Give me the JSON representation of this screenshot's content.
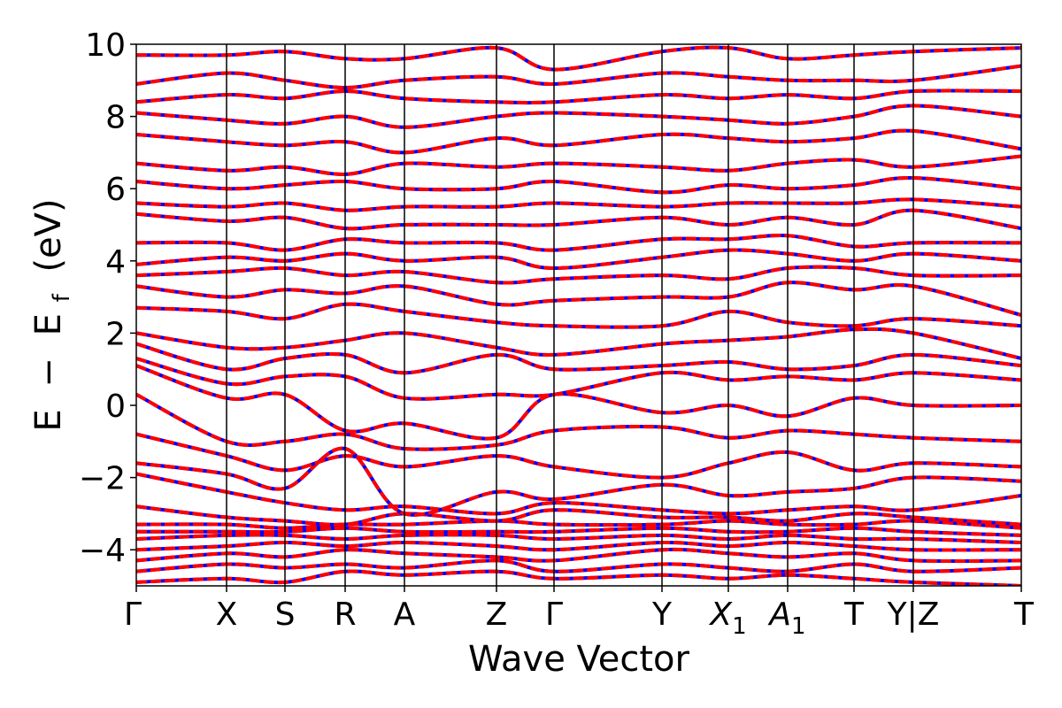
{
  "chart_data": {
    "type": "line",
    "title": "",
    "xlabel": "Wave Vector",
    "ylabel_parts": {
      "e": "E",
      "minus": "−",
      "ef": "E",
      "sub": "f",
      "unit": "(eV)"
    },
    "ylim": [
      -5,
      10
    ],
    "xlim": [
      0,
      1
    ],
    "grid": false,
    "legend": "none",
    "yticks": [
      {
        "value": 10,
        "label": "10"
      },
      {
        "value": 8,
        "label": "8"
      },
      {
        "value": 6,
        "label": "6"
      },
      {
        "value": 4,
        "label": "4"
      },
      {
        "value": 2,
        "label": "2"
      },
      {
        "value": 0,
        "label": "0"
      },
      {
        "value": -2,
        "label": "−2"
      },
      {
        "value": -4,
        "label": "−4"
      }
    ],
    "kpoints": [
      {
        "x": 0.0,
        "label": "Γ",
        "sub": ""
      },
      {
        "x": 0.102,
        "label": "X",
        "sub": ""
      },
      {
        "x": 0.168,
        "label": "S",
        "sub": ""
      },
      {
        "x": 0.236,
        "label": "R",
        "sub": ""
      },
      {
        "x": 0.303,
        "label": "A",
        "sub": ""
      },
      {
        "x": 0.407,
        "label": "Z",
        "sub": ""
      },
      {
        "x": 0.472,
        "label": "Γ",
        "sub": ""
      },
      {
        "x": 0.594,
        "label": "Y",
        "sub": ""
      },
      {
        "x": 0.669,
        "label": "X",
        "sub": "1",
        "italic": true
      },
      {
        "x": 0.736,
        "label": "A",
        "sub": "1",
        "italic": true
      },
      {
        "x": 0.811,
        "label": "T",
        "sub": ""
      },
      {
        "x": 0.878,
        "label": "Y|Z",
        "sub": ""
      },
      {
        "x": 1.0,
        "label": "T",
        "sub": ""
      }
    ],
    "band_styles": {
      "series_a": {
        "color": "#ff0000"
      },
      "series_b": {
        "color": "#0000ff",
        "dashed": true
      }
    },
    "bands": [
      [
        -4.9,
        -4.8,
        -4.9,
        -4.6,
        -4.7,
        -4.6,
        -4.8,
        -4.7,
        -4.8,
        -4.7,
        -4.8,
        -4.9,
        -5.0
      ],
      [
        -4.6,
        -4.4,
        -4.5,
        -4.4,
        -4.5,
        -4.3,
        -4.6,
        -4.4,
        -4.5,
        -4.6,
        -4.4,
        -4.6,
        -4.5
      ],
      [
        -4.3,
        -4.1,
        -4.2,
        -4.0,
        -4.1,
        -4.2,
        -4.3,
        -4.0,
        -4.1,
        -4.2,
        -4.1,
        -4.3,
        -4.3
      ],
      [
        -4.0,
        -3.9,
        -3.8,
        -3.9,
        -3.8,
        -3.9,
        -4.0,
        -3.8,
        -3.9,
        -3.8,
        -3.9,
        -4.0,
        -4.0
      ],
      [
        -3.7,
        -3.6,
        -3.6,
        -3.7,
        -3.6,
        -3.6,
        -3.7,
        -3.6,
        -3.7,
        -3.6,
        -3.7,
        -3.7,
        -3.8
      ],
      [
        -3.5,
        -3.5,
        -3.5,
        -3.4,
        -3.5,
        -3.5,
        -3.5,
        -3.4,
        -3.5,
        -3.5,
        -3.4,
        -3.5,
        -3.6
      ],
      [
        -3.3,
        -3.3,
        -3.4,
        -3.3,
        -3.3,
        -3.2,
        -3.3,
        -3.3,
        -3.2,
        -3.3,
        -3.3,
        -3.2,
        -3.4
      ],
      [
        -2.8,
        -3.1,
        -3.2,
        -3.3,
        -3.0,
        -3.2,
        -2.9,
        -3.1,
        -3.1,
        -3.2,
        -3.0,
        -3.1,
        -3.3
      ],
      [
        -1.9,
        -2.4,
        -2.7,
        -2.9,
        -2.8,
        -3.0,
        -2.7,
        -2.9,
        -3.0,
        -2.9,
        -2.8,
        -2.9,
        -2.5
      ],
      [
        -1.6,
        -1.9,
        -2.3,
        -1.2,
        -3.0,
        -2.4,
        -2.6,
        -2.2,
        -2.5,
        -2.4,
        -2.3,
        -2.0,
        -2.1
      ],
      [
        -0.8,
        -1.4,
        -1.8,
        -1.4,
        -1.7,
        -1.4,
        -1.7,
        -2.0,
        -1.6,
        -1.3,
        -1.8,
        -1.6,
        -1.7
      ],
      [
        0.3,
        -1.0,
        -1.0,
        -0.8,
        -1.2,
        -1.1,
        -0.7,
        -0.6,
        -0.9,
        -0.7,
        -0.8,
        -0.9,
        -1.0
      ],
      [
        1.1,
        0.2,
        0.3,
        -0.7,
        -0.5,
        -0.9,
        0.3,
        -0.2,
        0.0,
        -0.3,
        0.2,
        0.0,
        0.0
      ],
      [
        1.3,
        0.6,
        0.8,
        0.8,
        0.2,
        0.3,
        0.3,
        0.9,
        0.7,
        0.8,
        0.7,
        0.9,
        0.7
      ],
      [
        1.7,
        1.0,
        1.3,
        1.4,
        0.9,
        1.4,
        1.0,
        1.1,
        1.2,
        1.0,
        1.1,
        1.4,
        1.1
      ],
      [
        2.0,
        1.6,
        1.6,
        1.8,
        2.0,
        1.6,
        1.4,
        1.7,
        1.8,
        1.9,
        2.1,
        2.0,
        1.3
      ],
      [
        2.7,
        2.6,
        2.4,
        2.8,
        2.6,
        2.3,
        2.2,
        2.2,
        2.6,
        2.3,
        2.2,
        2.4,
        2.2
      ],
      [
        3.3,
        3.0,
        3.2,
        3.1,
        3.3,
        2.8,
        2.9,
        3.0,
        3.0,
        3.4,
        3.2,
        3.3,
        2.5
      ],
      [
        3.6,
        3.7,
        3.8,
        3.6,
        3.7,
        3.4,
        3.5,
        3.6,
        3.5,
        3.8,
        3.8,
        3.6,
        3.6
      ],
      [
        3.9,
        4.1,
        4.0,
        4.2,
        4.0,
        4.1,
        3.8,
        4.1,
        4.3,
        4.2,
        4.0,
        4.2,
        4.0
      ],
      [
        4.5,
        4.5,
        4.3,
        4.6,
        4.5,
        4.5,
        4.3,
        4.6,
        4.6,
        4.7,
        4.4,
        4.5,
        4.5
      ],
      [
        5.3,
        5.1,
        5.2,
        4.9,
        5.0,
        5.0,
        5.0,
        5.2,
        5.0,
        5.2,
        5.0,
        5.4,
        4.9
      ],
      [
        5.6,
        5.5,
        5.6,
        5.4,
        5.5,
        5.5,
        5.6,
        5.5,
        5.6,
        5.6,
        5.6,
        5.7,
        5.5
      ],
      [
        6.2,
        6.0,
        6.1,
        6.2,
        6.0,
        6.0,
        6.2,
        5.9,
        6.1,
        6.0,
        6.1,
        6.3,
        6.0
      ],
      [
        6.7,
        6.5,
        6.6,
        6.4,
        6.7,
        6.6,
        6.7,
        6.6,
        6.5,
        6.7,
        6.8,
        6.6,
        6.9
      ],
      [
        7.5,
        7.3,
        7.2,
        7.3,
        7.0,
        7.4,
        7.2,
        7.5,
        7.4,
        7.3,
        7.4,
        7.6,
        7.1
      ],
      [
        8.1,
        7.9,
        7.8,
        8.0,
        7.7,
        8.0,
        8.1,
        8.0,
        7.9,
        7.8,
        8.0,
        8.3,
        8.0
      ],
      [
        8.4,
        8.6,
        8.5,
        8.7,
        8.5,
        8.4,
        8.4,
        8.6,
        8.5,
        8.6,
        8.5,
        8.7,
        8.7
      ],
      [
        8.9,
        9.2,
        9.0,
        8.8,
        9.0,
        9.1,
        8.9,
        9.2,
        9.1,
        9.0,
        9.0,
        9.0,
        9.4
      ],
      [
        9.7,
        9.7,
        9.8,
        9.6,
        9.6,
        9.9,
        9.3,
        9.8,
        9.9,
        9.6,
        9.7,
        9.8,
        9.9
      ]
    ]
  }
}
